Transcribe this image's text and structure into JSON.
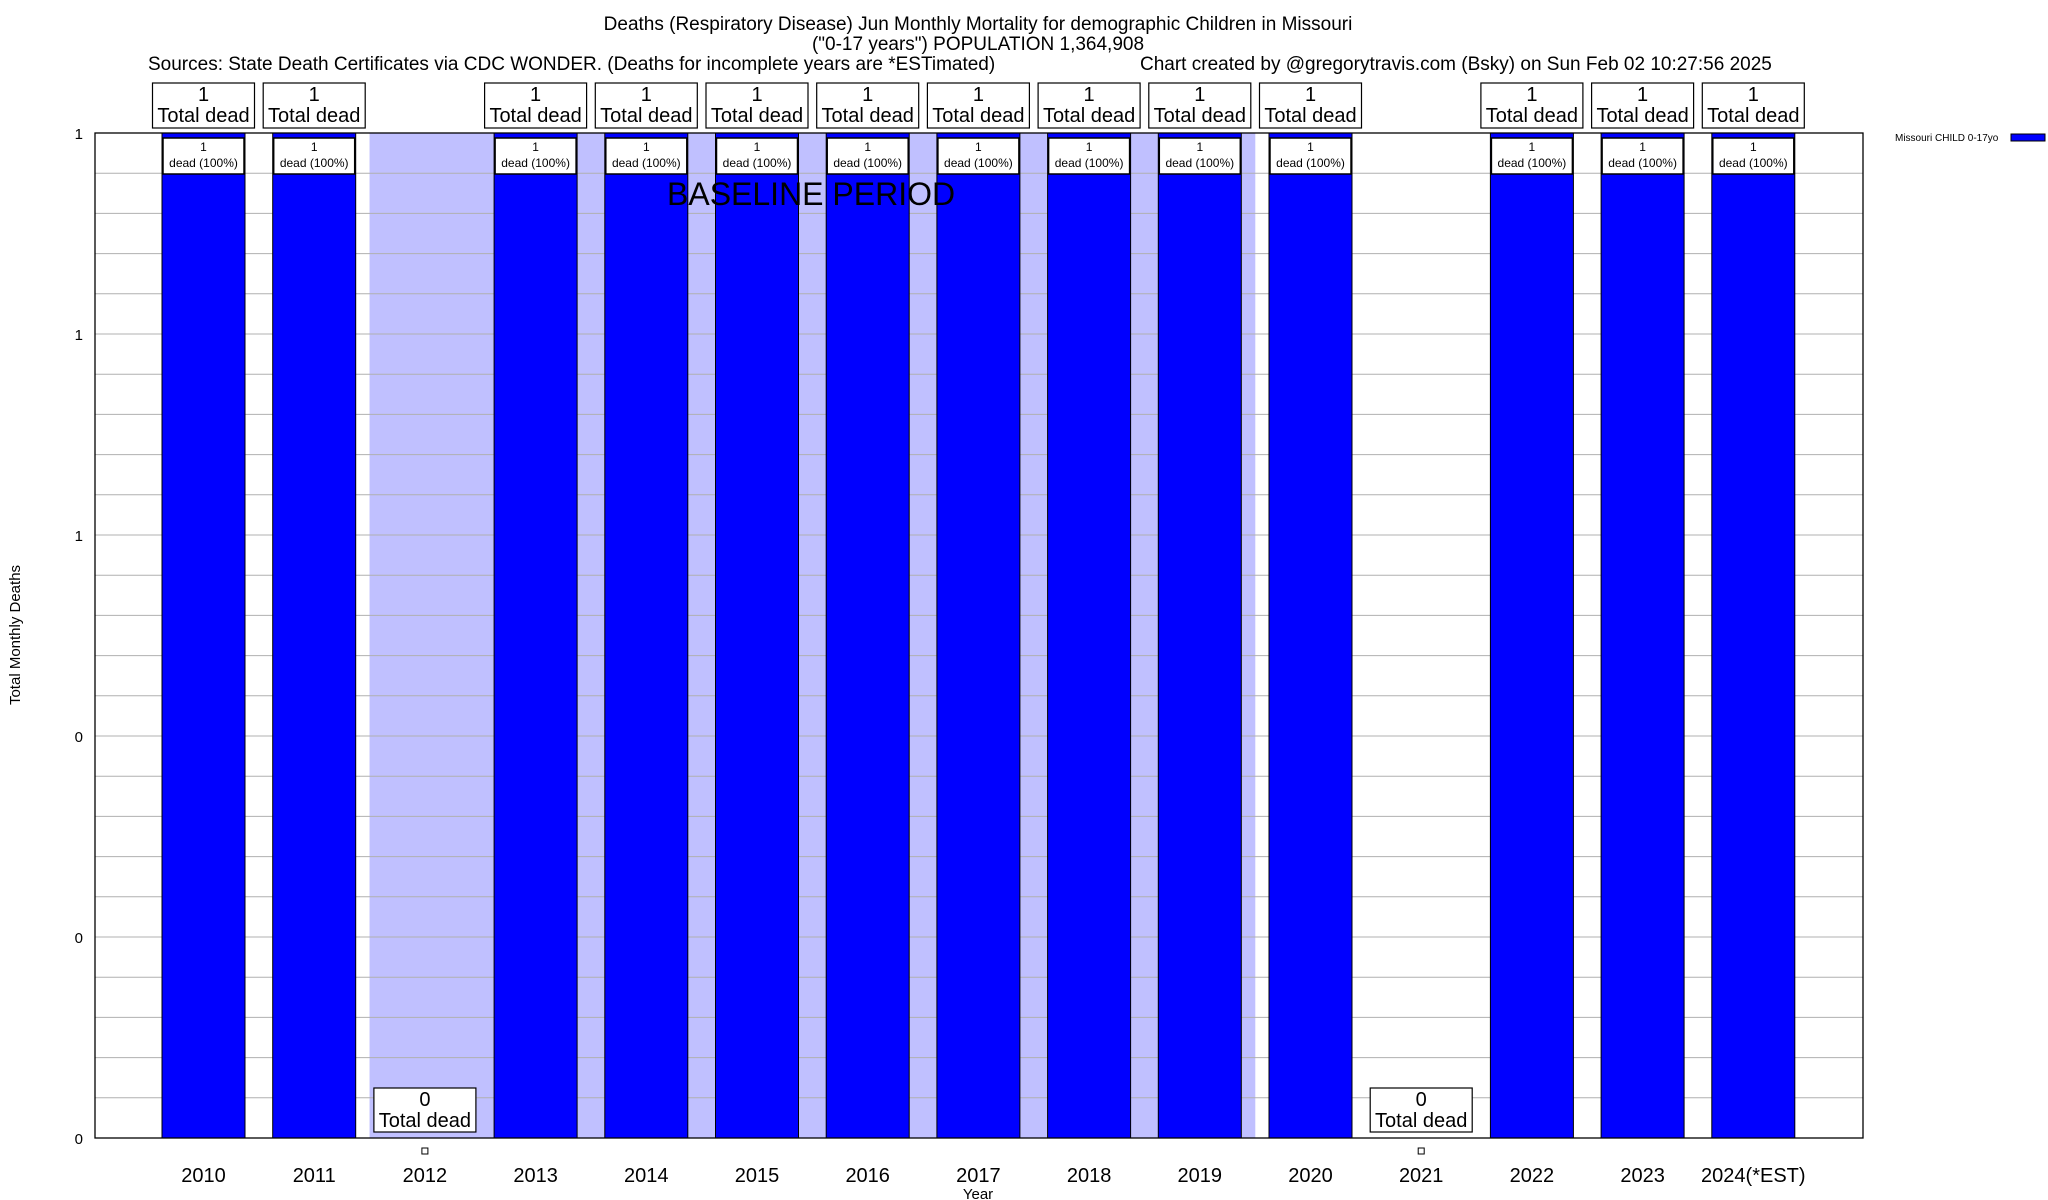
{
  "chart_data": {
    "type": "bar",
    "title_line1": "Deaths (Respiratory Disease) Jun Monthly Mortality for demographic Children in Missouri",
    "title_line2": "(\"0-17 years\") POPULATION 1,364,908",
    "sources": "Sources: State Death Certificates via CDC WONDER. (Deaths for incomplete years are *ESTimated)",
    "credit": "Chart created by @gregorytravis.com (Bsky) on Sun Feb 02 10:27:56 2025",
    "xlabel": "Year",
    "ylabel": "Total Monthly Deaths",
    "ylim": [
      0,
      1
    ],
    "yticks": [
      0,
      0.2,
      0.4,
      0.6,
      0.8,
      1
    ],
    "ytick_labels": [
      "0",
      "0",
      "0",
      "1",
      "1",
      "1"
    ],
    "grid": true,
    "legend": {
      "label": "Missouri CHILD 0-17yo",
      "placement": "top-right outside"
    },
    "annotation": "BASELINE PERIOD",
    "baseline_period": [
      "2012",
      "2019"
    ],
    "categories": [
      "2010",
      "2011",
      "2012",
      "2013",
      "2014",
      "2015",
      "2016",
      "2017",
      "2018",
      "2019",
      "2020",
      "2021",
      "2022",
      "2023",
      "2024(*EST)"
    ],
    "series": [
      {
        "name": "Missouri CHILD 0-17yo",
        "color": "#0000ff",
        "values": [
          1,
          1,
          0,
          1,
          1,
          1,
          1,
          1,
          1,
          1,
          1,
          0,
          1,
          1,
          1
        ]
      }
    ],
    "total_label_suffix": "Total dead",
    "bar_label_suffix": "dead (100%)",
    "colors": {
      "bar": "#0000ff",
      "baseline_shade": "#c0c0ff",
      "grid": "#b0b0b0"
    }
  }
}
